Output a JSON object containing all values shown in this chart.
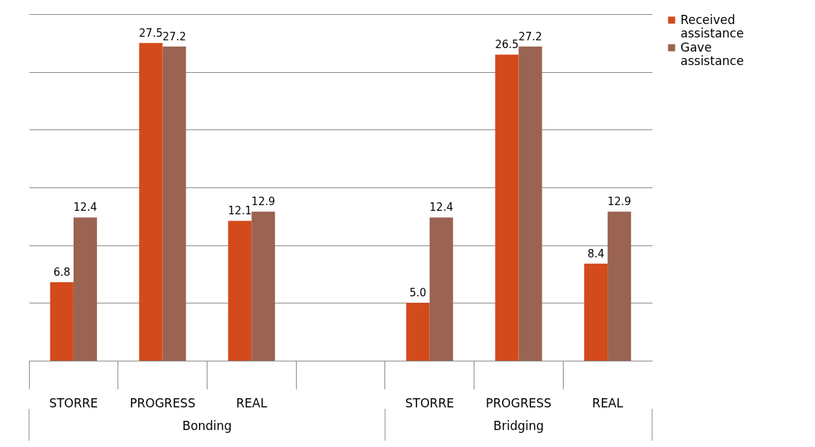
{
  "chart_data": {
    "type": "bar",
    "categories": [
      "STORRE",
      "PROGRESS",
      "REAL",
      null,
      "STORRE",
      "PROGRESS",
      "REAL"
    ],
    "series": [
      {
        "name": "Received assistance",
        "color": "#d34a1c",
        "values": [
          6.8,
          27.5,
          12.1,
          null,
          5.0,
          26.5,
          8.4
        ],
        "value_labels": [
          "6.8",
          "27.5",
          "12.1",
          null,
          "5.0",
          "26.5",
          "8.4"
        ]
      },
      {
        "name": "Gave assistance",
        "color": "#9a6352",
        "values": [
          12.4,
          27.2,
          12.9,
          null,
          12.4,
          27.2,
          12.9
        ],
        "value_labels": [
          "12.4",
          "27.2",
          "12.9",
          null,
          "12.4",
          "27.2",
          "12.9"
        ]
      }
    ],
    "annotations": [
      "Bonding",
      "Bridging"
    ],
    "ylim": [
      0,
      30
    ],
    "yticks": [
      0,
      5,
      10,
      15,
      20,
      25,
      30
    ],
    "tick_labels": "x",
    "grid": "y",
    "legend": "right"
  }
}
